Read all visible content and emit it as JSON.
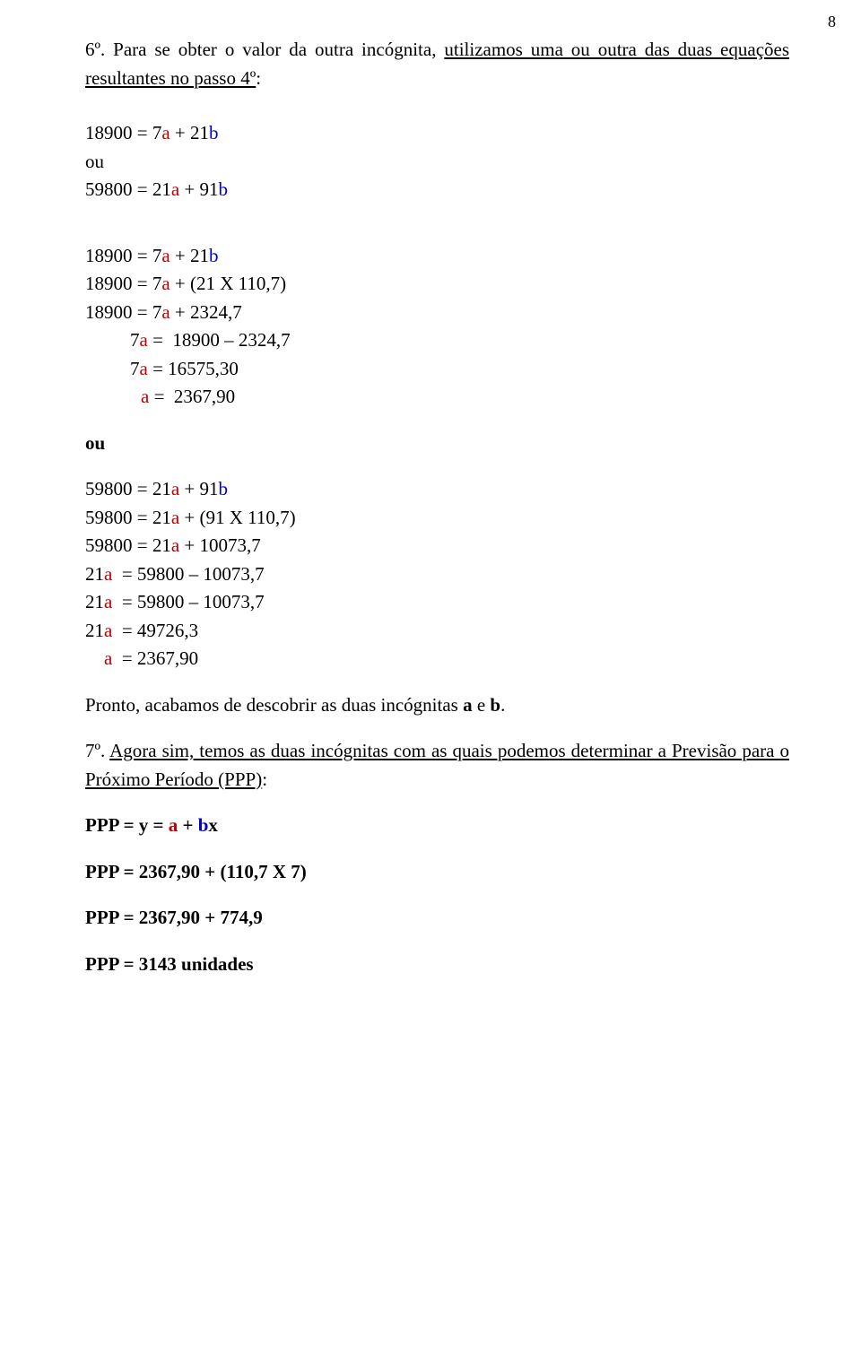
{
  "pageNumber": "8",
  "intro": {
    "prefix": "6º. Para se obter o valor da outra incógnita, ",
    "underlined": "utilizamos uma ou outra das duas equações resultantes no passo 4º",
    "suffix": ":"
  },
  "blockA": {
    "l1_pre": "18900 = 7",
    "l1_a": "a",
    "l1_mid": " + 21",
    "l1_b": "b",
    "ou": "ou",
    "l2_pre": "59800 = 21",
    "l2_a": "a",
    "l2_mid": " + 91",
    "l2_b": "b"
  },
  "blockB": {
    "l1_pre": "18900 = 7",
    "l1_a": "a",
    "l1_mid": " + 21",
    "l1_b": "b",
    "l2_pre": "18900 = 7",
    "l2_a": "a",
    "l2_post": " + (21 X 110,7)",
    "l3_pre": "18900 = 7",
    "l3_a": "a",
    "l3_post": " + 2324,7",
    "l4_pre": "7",
    "l4_a": "a",
    "l4_post": " =  18900 – 2324,7",
    "l5_pre": "7",
    "l5_a": "a",
    "l5_post": " = 16575,30",
    "l6_a": "a",
    "l6_post": " =  2367,90"
  },
  "ouMiddle": "ou",
  "blockC": {
    "l1_pre": "59800 = 21",
    "l1_a": "a",
    "l1_mid": " + 91",
    "l1_b": "b",
    "l2_pre": "59800 = 21",
    "l2_a": "a",
    "l2_post": " + (91 X 110,7)",
    "l3_pre": "59800 = 21",
    "l3_a": "a",
    "l3_post": " + 10073,7",
    "l4_pre": "21",
    "l4_a": "a",
    "l4_post": "  = 59800 – 10073,7",
    "l5_pre": "21",
    "l5_a": "a",
    "l5_post": "  = 59800 – 10073,7",
    "l6_pre": "21",
    "l6_a": "a",
    "l6_post": "  = 49726,3",
    "l7_a": "a",
    "l7_post": "  = 2367,90"
  },
  "pronto": {
    "pre": "Pronto, acabamos de descobrir as duas incógnitas ",
    "a": "a",
    "and": " e ",
    "b": "b",
    "dot": "."
  },
  "step7": {
    "prefix": "7º. ",
    "underlined": "Agora sim, temos as duas incógnitas com as quais podemos determinar a Previsão para o Próximo Período (PPP)",
    "suffix": ":"
  },
  "ppp1": {
    "pre": "PPP = ",
    "y": "y",
    "eq": " = ",
    "a": "a",
    "plus": " + ",
    "b": "b",
    "x": "x"
  },
  "ppp2": "PPP = 2367,90 + (110,7 X 7)",
  "ppp3": "PPP = 2367,90 + 774,9",
  "ppp4": "PPP = 3143 unidades"
}
